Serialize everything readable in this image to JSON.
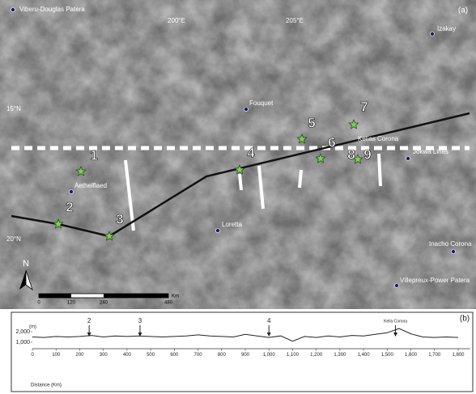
{
  "map": {
    "panel": "(a)",
    "lon_labels": [
      "200°E",
      "205°E"
    ],
    "lat_labels": [
      "15°N",
      "20°N"
    ],
    "places": [
      "Viberu-Douglas Patera",
      "Izakay",
      "Fouquet",
      "Kelias Corona",
      "Jokwa Lines",
      "Aethelflaed",
      "Loretta",
      "Inacho Corona",
      "Villepreux-Power Patera"
    ],
    "sites": [
      "1",
      "2",
      "3",
      "4",
      "5",
      "6",
      "7",
      "8",
      "9"
    ],
    "north": "N",
    "scale": [
      "0",
      "120",
      "240",
      "480",
      "Km"
    ]
  },
  "chart_data": {
    "type": "line",
    "panel": "(b)",
    "ylabel": "(m)",
    "xlabel": "Distance (Km)",
    "x": [
      0,
      50,
      100,
      150,
      200,
      250,
      300,
      350,
      400,
      450,
      500,
      550,
      600,
      650,
      700,
      750,
      800,
      850,
      900,
      950,
      1000,
      1050,
      1100,
      1150,
      1200,
      1250,
      1300,
      1350,
      1400,
      1450,
      1500,
      1550,
      1600,
      1650,
      1700,
      1750,
      1800
    ],
    "series": [
      {
        "color": "#222222",
        "values": [
          1500,
          1450,
          1550,
          1500,
          1550,
          1650,
          1500,
          1600,
          1550,
          1600,
          1550,
          1500,
          1550,
          1600,
          1700,
          1600,
          1550,
          1500,
          1750,
          1600,
          1450,
          1600,
          1100,
          1550,
          1450,
          1600,
          1500,
          1650,
          1600,
          1750,
          1900,
          2300,
          1800,
          1500,
          1450,
          1500,
          1450
        ]
      }
    ],
    "xlim": [
      0,
      1850
    ],
    "xticks": [
      0,
      100,
      200,
      300,
      400,
      500,
      600,
      700,
      800,
      900,
      {
        "value": 1000,
        "label": "1,000"
      },
      {
        "value": 1100,
        "label": "1,100"
      },
      {
        "value": 1200,
        "label": "1,200"
      },
      {
        "value": 1300,
        "label": "1,300"
      },
      {
        "value": 1400,
        "label": "1,400"
      },
      {
        "value": 1500,
        "label": "1,500"
      },
      {
        "value": 1600,
        "label": "1,600"
      },
      {
        "value": 1700,
        "label": "1,700"
      },
      {
        "value": 1800,
        "label": "1,800"
      }
    ],
    "ylim": [
      500,
      3000
    ],
    "yticks": [
      {
        "value": 1000,
        "label": "1,000"
      },
      {
        "value": 2000,
        "label": "2,000"
      }
    ],
    "annotations": [
      {
        "x": 240,
        "text": "2"
      },
      {
        "x": 455,
        "text": "3"
      },
      {
        "x": 1000,
        "text": "4"
      },
      {
        "x": 1535,
        "text": "Kelia Corona"
      }
    ]
  }
}
